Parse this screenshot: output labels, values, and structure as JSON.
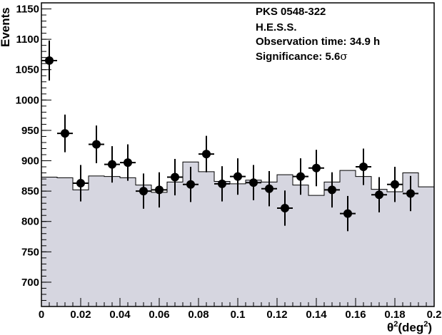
{
  "chart_data": {
    "type": "scatter",
    "ylabel": "Events",
    "xlabel_base": "θ",
    "xlabel_sup": "2",
    "xlabel_unit_base": "(deg",
    "xlabel_unit_sup": "2",
    "xlabel_unit_close": ")",
    "xlim": [
      0,
      0.2
    ],
    "ylim": [
      660,
      1160
    ],
    "x_ticks": [
      "0",
      "0.02",
      "0.04",
      "0.06",
      "0.08",
      "0.1",
      "0.12",
      "0.14",
      "0.16",
      "0.18",
      "0.2"
    ],
    "y_ticks": [
      "700",
      "750",
      "800",
      "850",
      "900",
      "950",
      "1000",
      "1050",
      "1100",
      "1150"
    ],
    "annotations": {
      "source": "PKS 0548-322",
      "instrument": "H.E.S.S.",
      "obs_time": "Observation time: 34.9 h",
      "significance_prefix": "Significance: 5.6",
      "significance_symbol": "σ"
    },
    "background": {
      "bin_edges": [
        0,
        0.008,
        0.016,
        0.024,
        0.032,
        0.04,
        0.048,
        0.056,
        0.064,
        0.072,
        0.08,
        0.088,
        0.096,
        0.104,
        0.112,
        0.12,
        0.128,
        0.136,
        0.144,
        0.152,
        0.16,
        0.168,
        0.176,
        0.184,
        0.192,
        0.2
      ],
      "values": [
        873,
        872,
        852,
        875,
        874,
        872,
        860,
        848,
        865,
        898,
        882,
        866,
        862,
        868,
        865,
        877,
        860,
        843,
        865,
        884,
        874,
        853,
        849,
        880,
        857
      ],
      "fill": "#d6d6e0",
      "stroke": "#000000"
    },
    "series": [
      {
        "marker_color": "#000000",
        "points": [
          {
            "x": 0.004,
            "y": 1065,
            "yerr": 33
          },
          {
            "x": 0.012,
            "y": 945,
            "yerr": 31
          },
          {
            "x": 0.02,
            "y": 863,
            "yerr": 30
          },
          {
            "x": 0.028,
            "y": 927,
            "yerr": 31
          },
          {
            "x": 0.036,
            "y": 894,
            "yerr": 30
          },
          {
            "x": 0.044,
            "y": 897,
            "yerr": 30
          },
          {
            "x": 0.052,
            "y": 850,
            "yerr": 29
          },
          {
            "x": 0.06,
            "y": 852,
            "yerr": 29
          },
          {
            "x": 0.068,
            "y": 873,
            "yerr": 30
          },
          {
            "x": 0.076,
            "y": 861,
            "yerr": 29
          },
          {
            "x": 0.084,
            "y": 911,
            "yerr": 30
          },
          {
            "x": 0.092,
            "y": 862,
            "yerr": 29
          },
          {
            "x": 0.1,
            "y": 874,
            "yerr": 30
          },
          {
            "x": 0.108,
            "y": 864,
            "yerr": 29
          },
          {
            "x": 0.116,
            "y": 854,
            "yerr": 29
          },
          {
            "x": 0.124,
            "y": 822,
            "yerr": 29
          },
          {
            "x": 0.132,
            "y": 874,
            "yerr": 30
          },
          {
            "x": 0.14,
            "y": 888,
            "yerr": 30
          },
          {
            "x": 0.148,
            "y": 852,
            "yerr": 29
          },
          {
            "x": 0.156,
            "y": 813,
            "yerr": 29
          },
          {
            "x": 0.164,
            "y": 890,
            "yerr": 30
          },
          {
            "x": 0.172,
            "y": 844,
            "yerr": 29
          },
          {
            "x": 0.18,
            "y": 861,
            "yerr": 29
          },
          {
            "x": 0.188,
            "y": 846,
            "yerr": 29
          }
        ]
      }
    ]
  }
}
